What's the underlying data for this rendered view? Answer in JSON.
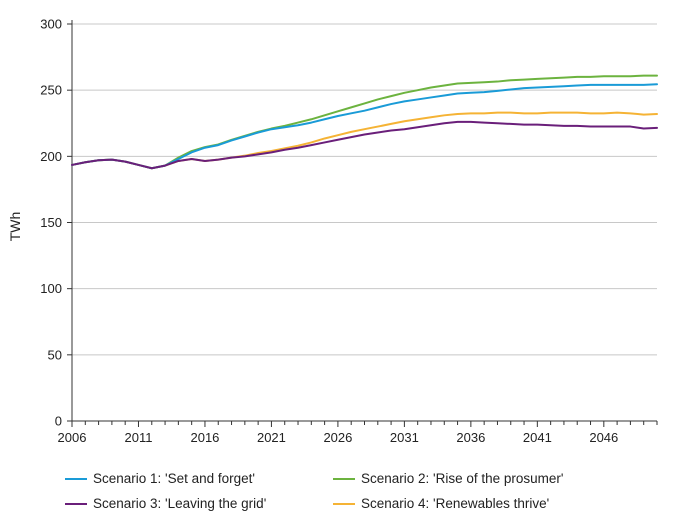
{
  "chart_data": {
    "type": "line",
    "title": "",
    "xlabel": "",
    "ylabel": "TWh",
    "xlim": [
      2006,
      2050
    ],
    "ylim": [
      0,
      300
    ],
    "x_ticks": [
      2006,
      2011,
      2016,
      2021,
      2026,
      2031,
      2036,
      2041,
      2046
    ],
    "x_tick_labels": [
      "2006",
      "2011",
      "2016",
      "2021",
      "2026",
      "2031",
      "2036",
      "2041",
      "2046"
    ],
    "y_ticks": [
      0,
      50,
      100,
      150,
      200,
      250,
      300
    ],
    "y_tick_labels": [
      "0",
      "50",
      "100",
      "150",
      "200",
      "250",
      "300"
    ],
    "grid": "horizontal",
    "legend_position": "bottom",
    "x": [
      2006,
      2007,
      2008,
      2009,
      2010,
      2011,
      2012,
      2013,
      2014,
      2015,
      2016,
      2017,
      2018,
      2019,
      2020,
      2021,
      2022,
      2023,
      2024,
      2025,
      2026,
      2027,
      2028,
      2029,
      2030,
      2031,
      2032,
      2033,
      2034,
      2035,
      2036,
      2037,
      2038,
      2039,
      2040,
      2041,
      2042,
      2043,
      2044,
      2045,
      2046,
      2047,
      2048,
      2049,
      2050
    ],
    "series": [
      {
        "name": "Scenario 1: 'Set and forget'",
        "color": "#1a9bd7",
        "values": [
          193.5,
          195.5,
          197,
          197.5,
          196,
          193.5,
          191,
          193,
          198,
          203,
          206.5,
          208.5,
          212,
          215,
          218,
          220.5,
          222,
          223.5,
          225.5,
          228,
          230.5,
          232.5,
          234.5,
          237,
          239.5,
          241.5,
          243,
          244.5,
          246,
          247.5,
          248,
          248.5,
          249.5,
          250.5,
          251.5,
          252,
          252.5,
          253,
          253.5,
          254,
          254,
          254,
          254,
          254,
          254.5
        ]
      },
      {
        "name": "Scenario 2: 'Rise of the prosumer'",
        "color": "#6cb33f",
        "values": [
          193.5,
          195.5,
          197,
          197.5,
          196,
          193.5,
          191,
          193,
          199,
          204,
          207,
          209,
          212.5,
          215.5,
          218.5,
          221,
          223,
          225.5,
          228,
          231,
          234,
          237,
          240,
          243,
          245.5,
          248,
          250,
          252,
          253.5,
          255,
          255.5,
          256,
          256.5,
          257.5,
          258,
          258.5,
          259,
          259.5,
          260,
          260,
          260.5,
          260.5,
          260.5,
          261,
          261
        ]
      },
      {
        "name": "Scenario 3: 'Leaving the grid'",
        "color": "#6a1f7a",
        "values": [
          193.5,
          195.5,
          197,
          197.5,
          196,
          193.5,
          191,
          193,
          196.5,
          198,
          196.5,
          197.5,
          199,
          200,
          201.5,
          203,
          205,
          206.5,
          208.5,
          210.5,
          212.5,
          214.5,
          216.5,
          218,
          219.5,
          220.5,
          222,
          223.5,
          225,
          226,
          226,
          225.5,
          225,
          224.5,
          224,
          224,
          223.5,
          223,
          223,
          222.5,
          222.5,
          222.5,
          222.5,
          221,
          221.5
        ]
      },
      {
        "name": "Scenario 4: 'Renewables thrive'",
        "color": "#f5b335",
        "values": [
          193.5,
          195.5,
          197,
          197.5,
          196,
          193.5,
          191,
          193,
          196.5,
          198,
          196.5,
          197.5,
          199,
          200.5,
          202.5,
          204,
          206,
          208,
          210.5,
          213.5,
          216,
          218.5,
          220.5,
          222.5,
          224.5,
          226.5,
          228,
          229.5,
          231,
          232,
          232.5,
          232.5,
          233,
          233,
          232.5,
          232.5,
          233,
          233,
          233,
          232.5,
          232.5,
          233,
          232.5,
          231.5,
          232
        ]
      }
    ]
  }
}
